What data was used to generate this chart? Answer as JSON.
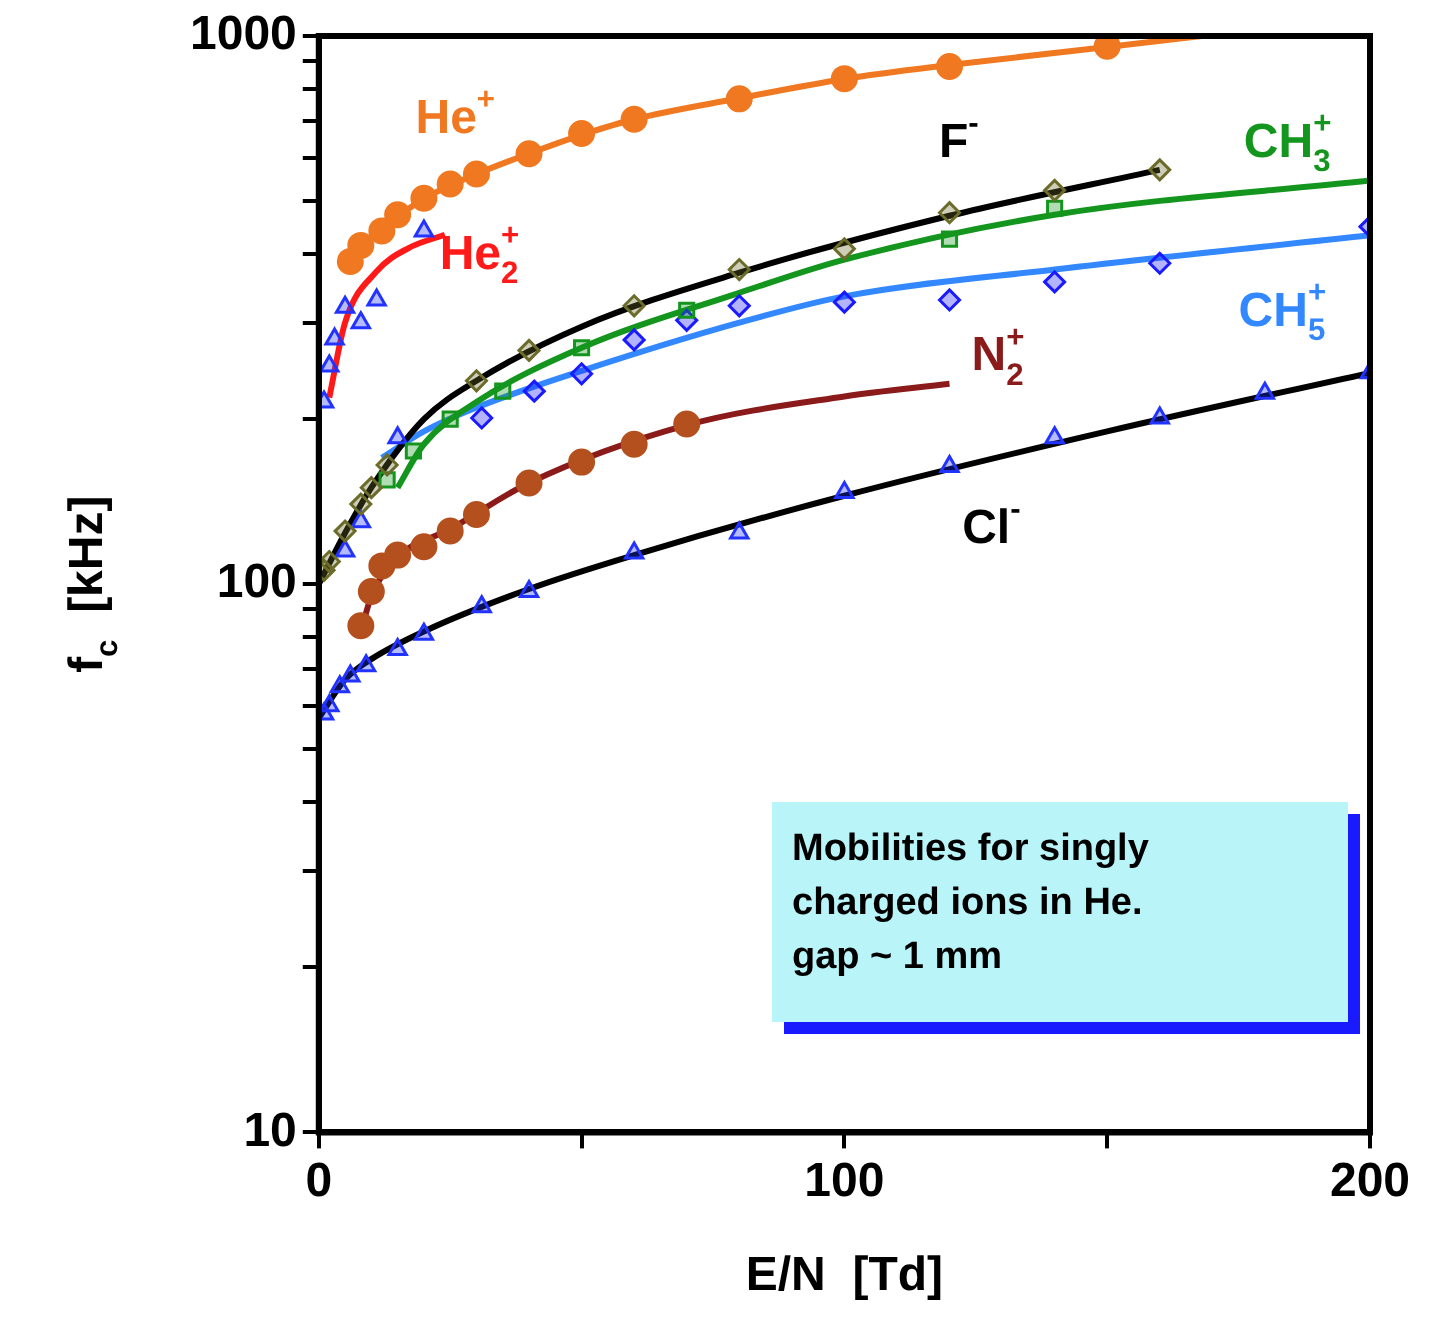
{
  "chart_data": {
    "type": "scatter",
    "xlabel": "E/N  [Td]",
    "ylabel": "f$_{c}$  [kHz]",
    "log": "y",
    "grid": false,
    "legend": false,
    "line_style": "solid",
    "xlim": [
      0,
      200
    ],
    "xticks": [
      0,
      {
        "value": 50,
        "label": null
      },
      100,
      {
        "value": 150,
        "label": null
      },
      200
    ],
    "ylim": [
      10,
      1000
    ],
    "yticks": [
      10,
      {
        "value": 20,
        "label": null
      },
      {
        "value": 30,
        "label": null
      },
      {
        "value": 40,
        "label": null
      },
      {
        "value": 50,
        "label": null
      },
      {
        "value": 60,
        "label": null
      },
      {
        "value": 70,
        "label": null
      },
      {
        "value": 80,
        "label": null
      },
      {
        "value": 90,
        "label": null
      },
      100,
      {
        "value": 200,
        "label": null
      },
      {
        "value": 300,
        "label": null
      },
      {
        "value": 400,
        "label": null
      },
      {
        "value": 500,
        "label": null
      },
      {
        "value": 600,
        "label": null
      },
      {
        "value": 700,
        "label": null
      },
      {
        "value": 800,
        "label": null
      },
      {
        "value": 900,
        "label": null
      },
      1000
    ],
    "annotations": [
      "Mobilities for singly charged ions in He. gap ~ 1 mm"
    ],
    "series": [
      {
        "type": "line",
        "name": "He$^{+}$",
        "color": "#f07820",
        "marker": "none",
        "x": [
          5,
          10,
          15,
          20,
          30,
          40,
          50,
          60,
          80,
          100,
          120,
          150,
          168
        ],
        "values": [
          385,
          430,
          468,
          505,
          560,
          610,
          660,
          705,
          770,
          835,
          885,
          955,
          1000
        ]
      },
      {
        "type": "scatter",
        "color": "#f07820",
        "marker": "circle",
        "x": [
          6,
          8,
          12,
          15,
          20,
          25,
          30,
          40,
          50,
          60,
          80,
          100,
          120,
          150
        ],
        "values": [
          388,
          415,
          441,
          472,
          506,
          537,
          560,
          610,
          664,
          705,
          768,
          836,
          880,
          958
        ]
      },
      {
        "type": "line",
        "name": "He$_{2}$$^{+}$",
        "color": "#ff1a1a",
        "marker": "none",
        "x": [
          2,
          5,
          11,
          17,
          24
        ],
        "values": [
          219,
          300,
          372,
          410,
          434
        ]
      },
      {
        "type": "scatter",
        "color": "#2233ff",
        "marker": "triangle",
        "x": [
          1,
          2,
          3,
          5,
          8,
          11,
          20
        ],
        "values": [
          215,
          250,
          280,
          320,
          300,
          330,
          441
        ]
      },
      {
        "type": "line",
        "name": "F$^{-}$",
        "color": "#000000",
        "marker": "none",
        "x": [
          0,
          5,
          10,
          20,
          30,
          50,
          80,
          120,
          160
        ],
        "values": [
          100,
          124,
          150,
          200,
          235,
          295,
          370,
          470,
          570
        ]
      },
      {
        "type": "scatter",
        "color": "#6b6b2a",
        "marker": "diamond",
        "x": [
          1,
          2,
          5,
          8,
          10,
          13,
          30,
          40,
          60,
          80,
          100,
          120,
          140,
          160
        ],
        "values": [
          106,
          110,
          125,
          140,
          150,
          165,
          235,
          267,
          322,
          375,
          409,
          476,
          523,
          570
        ]
      },
      {
        "type": "line",
        "name": "CH$_{3}$$^{+}$",
        "color": "#14961e",
        "marker": "none",
        "x": [
          15,
          20,
          30,
          50,
          80,
          100,
          140,
          200
        ],
        "values": [
          150,
          180,
          215,
          270,
          340,
          391,
          472,
          545
        ]
      },
      {
        "type": "scatter",
        "color": "#14961e",
        "marker": "square",
        "x": [
          13,
          18,
          25,
          35,
          50,
          70,
          120,
          140
        ],
        "values": [
          155,
          175,
          200,
          225,
          270,
          316,
          426,
          485
        ]
      },
      {
        "type": "line",
        "name": "CH$_{5}$$^{+}$",
        "color": "#3388ff",
        "marker": "none",
        "x": [
          12,
          20,
          30,
          50,
          80,
          100,
          140,
          200
        ],
        "values": [
          170,
          190,
          210,
          245,
          300,
          335,
          375,
          433
        ]
      },
      {
        "type": "scatter",
        "color": "#1a1aff",
        "marker": "diamond",
        "x": [
          31,
          41,
          50,
          60,
          70,
          80,
          100,
          120,
          140,
          160,
          200
        ],
        "values": [
          201,
          225,
          242,
          279,
          303,
          322,
          327,
          330,
          356,
          385,
          449
        ]
      },
      {
        "type": "scatter",
        "color": "#2233ff",
        "marker": "triangle",
        "x": [
          5,
          8,
          15
        ],
        "values": [
          115,
          130,
          185
        ]
      },
      {
        "type": "line",
        "name": "N$_{2}$$^{+}$",
        "color": "#8b1a1a",
        "marker": "none",
        "x": [
          8,
          10,
          15,
          25,
          40,
          70,
          100,
          120
        ],
        "values": [
          82,
          95,
          112,
          126,
          153,
          195,
          220,
          232
        ]
      },
      {
        "type": "scatter",
        "color": "#b4501e",
        "marker": "circle",
        "x": [
          8,
          10,
          12,
          15,
          20,
          25,
          30,
          40,
          50,
          60,
          70
        ],
        "values": [
          84,
          97,
          108,
          113,
          117,
          125,
          134,
          153,
          167,
          180,
          196
        ]
      },
      {
        "type": "line",
        "name": "Cl$^{-}$",
        "color": "#000000",
        "marker": "none",
        "x": [
          0,
          5,
          10,
          20,
          40,
          60,
          100,
          150,
          200
        ],
        "values": [
          57,
          67,
          73,
          82,
          98,
          113,
          145,
          190,
          243
        ]
      },
      {
        "type": "scatter",
        "color": "#2233ff",
        "marker": "triangle",
        "x": [
          1,
          2,
          4,
          6,
          9,
          15,
          20,
          31,
          40,
          60,
          80,
          100,
          120,
          140,
          160,
          180,
          200
        ],
        "values": [
          58,
          60,
          65,
          68,
          71,
          76,
          81,
          91,
          97,
          114,
          124,
          147,
          164,
          185,
          201,
          223,
          243
        ]
      }
    ]
  }
}
